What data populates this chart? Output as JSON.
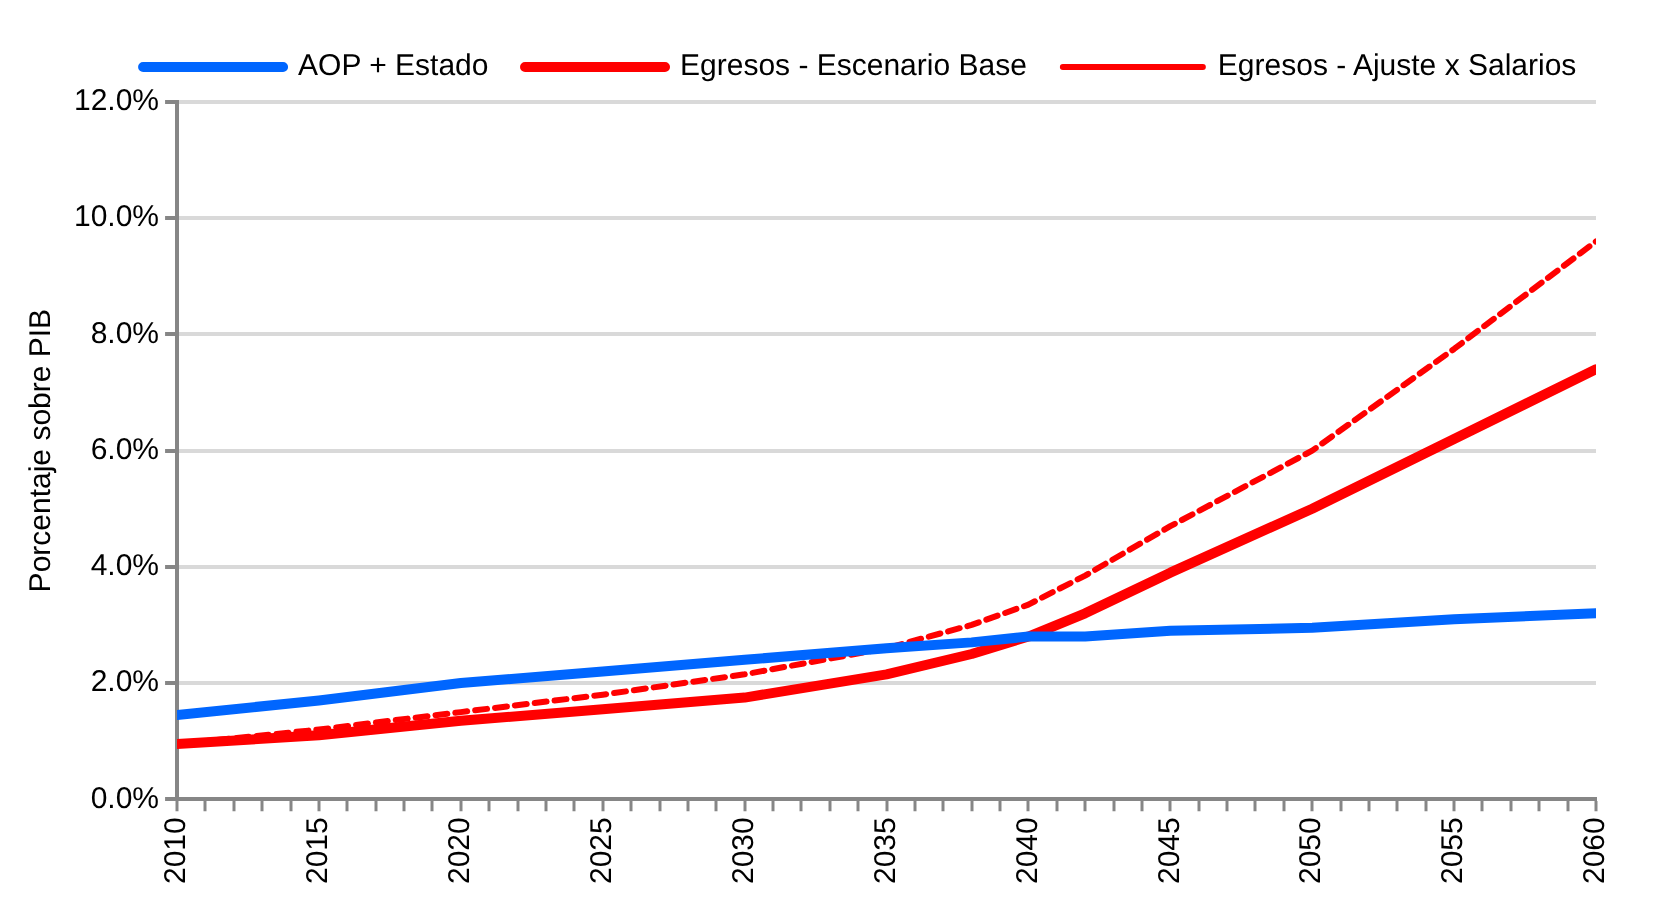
{
  "chart_data": {
    "type": "line",
    "ylabel": "Porcentaje sobre PIB",
    "legend": "top",
    "grid": "y",
    "line_style": "solid",
    "marker": "none",
    "xlim": [
      2010,
      2060
    ],
    "xticks": [
      2010,
      {
        "value": 2011,
        "label": null
      },
      {
        "value": 2012,
        "label": null
      },
      {
        "value": 2013,
        "label": null
      },
      {
        "value": 2014,
        "label": null
      },
      2015,
      {
        "value": 2016,
        "label": null
      },
      {
        "value": 2017,
        "label": null
      },
      {
        "value": 2018,
        "label": null
      },
      {
        "value": 2019,
        "label": null
      },
      2020,
      {
        "value": 2021,
        "label": null
      },
      {
        "value": 2022,
        "label": null
      },
      {
        "value": 2023,
        "label": null
      },
      {
        "value": 2024,
        "label": null
      },
      2025,
      {
        "value": 2026,
        "label": null
      },
      {
        "value": 2027,
        "label": null
      },
      {
        "value": 2028,
        "label": null
      },
      {
        "value": 2029,
        "label": null
      },
      2030,
      {
        "value": 2031,
        "label": null
      },
      {
        "value": 2032,
        "label": null
      },
      {
        "value": 2033,
        "label": null
      },
      {
        "value": 2034,
        "label": null
      },
      2035,
      {
        "value": 2036,
        "label": null
      },
      {
        "value": 2037,
        "label": null
      },
      {
        "value": 2038,
        "label": null
      },
      {
        "value": 2039,
        "label": null
      },
      2040,
      {
        "value": 2041,
        "label": null
      },
      {
        "value": 2042,
        "label": null
      },
      {
        "value": 2043,
        "label": null
      },
      {
        "value": 2044,
        "label": null
      },
      2045,
      {
        "value": 2046,
        "label": null
      },
      {
        "value": 2047,
        "label": null
      },
      {
        "value": 2048,
        "label": null
      },
      {
        "value": 2049,
        "label": null
      },
      2050,
      {
        "value": 2051,
        "label": null
      },
      {
        "value": 2052,
        "label": null
      },
      {
        "value": 2053,
        "label": null
      },
      {
        "value": 2054,
        "label": null
      },
      2055,
      {
        "value": 2056,
        "label": null
      },
      {
        "value": 2057,
        "label": null
      },
      {
        "value": 2058,
        "label": null
      },
      {
        "value": 2059,
        "label": null
      },
      2060
    ],
    "ylim": [
      0,
      12
    ],
    "yticks": [
      {
        "value": 0,
        "label": "0.0%"
      },
      {
        "value": 2,
        "label": "2.0%"
      },
      {
        "value": 4,
        "label": "4.0%"
      },
      {
        "value": 6,
        "label": "6.0%"
      },
      {
        "value": 8,
        "label": "8.0%"
      },
      {
        "value": 10,
        "label": "10.0%"
      },
      {
        "value": 12,
        "label": "12.0%"
      }
    ],
    "x": [
      2010,
      2015,
      2020,
      2025,
      2030,
      2035,
      2038,
      2040,
      2042,
      2045,
      2050,
      2055,
      2060
    ],
    "series": [
      {
        "name": "AOP + Estado",
        "color": "#0066ff",
        "values": [
          1.45,
          1.7,
          2.0,
          2.2,
          2.4,
          2.6,
          2.7,
          2.8,
          2.8,
          2.9,
          2.95,
          3.1,
          3.2
        ]
      },
      {
        "name": "Egresos - Escenario Base",
        "color": "#ff0000",
        "values": [
          0.95,
          1.1,
          1.35,
          1.55,
          1.75,
          2.15,
          2.5,
          2.8,
          3.2,
          3.9,
          5.0,
          6.2,
          7.4
        ]
      },
      {
        "name": "Egresos - Ajuste x Salarios",
        "color": "#ff0000",
        "line_style": "dashed",
        "values": [
          0.95,
          1.2,
          1.5,
          1.8,
          2.15,
          2.6,
          3.0,
          3.35,
          3.85,
          4.7,
          6.0,
          7.75,
          9.6
        ]
      }
    ]
  }
}
